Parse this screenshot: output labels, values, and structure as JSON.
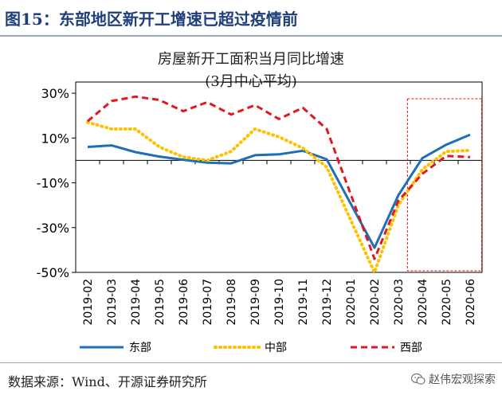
{
  "header": {
    "figure_title": "图15：东部地区新开工增速已超过疫情前"
  },
  "chart_data": {
    "type": "line",
    "title": "房屋新开工面积当月同比增速",
    "subtitle": "(3月中心平均)",
    "categories": [
      "2019-02",
      "2019-03",
      "2019-04",
      "2019-05",
      "2019-06",
      "2019-07",
      "2019-08",
      "2019-09",
      "2019-10",
      "2019-11",
      "2019-12",
      "2020-01",
      "2020-02",
      "2020-03",
      "2020-04",
      "2020-05",
      "2020-06"
    ],
    "ylim": [
      -50,
      35
    ],
    "yticks": [
      30,
      10,
      -10,
      -30,
      -50
    ],
    "ytick_labels": [
      "30%",
      "10%",
      "-10%",
      "-30%",
      "-50%"
    ],
    "series": [
      {
        "name": "东部",
        "color": "#1f6fb5",
        "style": "solid",
        "x": [
          0,
          1,
          2,
          3,
          4,
          5,
          6,
          7,
          8,
          9,
          10,
          12,
          13,
          14,
          15,
          16
        ],
        "values": [
          6,
          6.7,
          3.7,
          1.7,
          0.3,
          -1,
          -1.3,
          2.3,
          2.7,
          4.3,
          0.5,
          -39,
          -15.5,
          1,
          7,
          11.5
        ]
      },
      {
        "name": "中部",
        "color": "#ffc000",
        "style": "dotted",
        "x": [
          0,
          1,
          2,
          3,
          4,
          5,
          6,
          7,
          8,
          9,
          10,
          12,
          13,
          14,
          15,
          16
        ],
        "values": [
          17,
          14,
          14,
          6,
          1.5,
          0,
          4,
          14,
          10.5,
          5.5,
          -3,
          -50,
          -20,
          -4,
          4,
          4.5
        ]
      },
      {
        "name": "西部",
        "color": "#e0191e",
        "style": "dashed",
        "x": [
          0,
          1,
          2,
          3,
          4,
          5,
          6,
          7,
          8,
          9,
          10,
          12,
          13,
          14,
          15,
          16
        ],
        "values": [
          17.5,
          26.5,
          28.5,
          27,
          22,
          26,
          20.5,
          24.7,
          18.5,
          23.5,
          14,
          -44,
          -18,
          -6,
          2,
          1.5
        ]
      }
    ],
    "highlight": {
      "from": "2020-04",
      "to": "2020-06",
      "color": "#e0191e",
      "style": "dashed"
    },
    "grid": false,
    "legend": "bottom"
  },
  "footer": {
    "source": "数据来源：Wind、开源证券研究所",
    "watermark_text": "赵伟宏观探索",
    "watermark_icon": "wechat-icon"
  }
}
